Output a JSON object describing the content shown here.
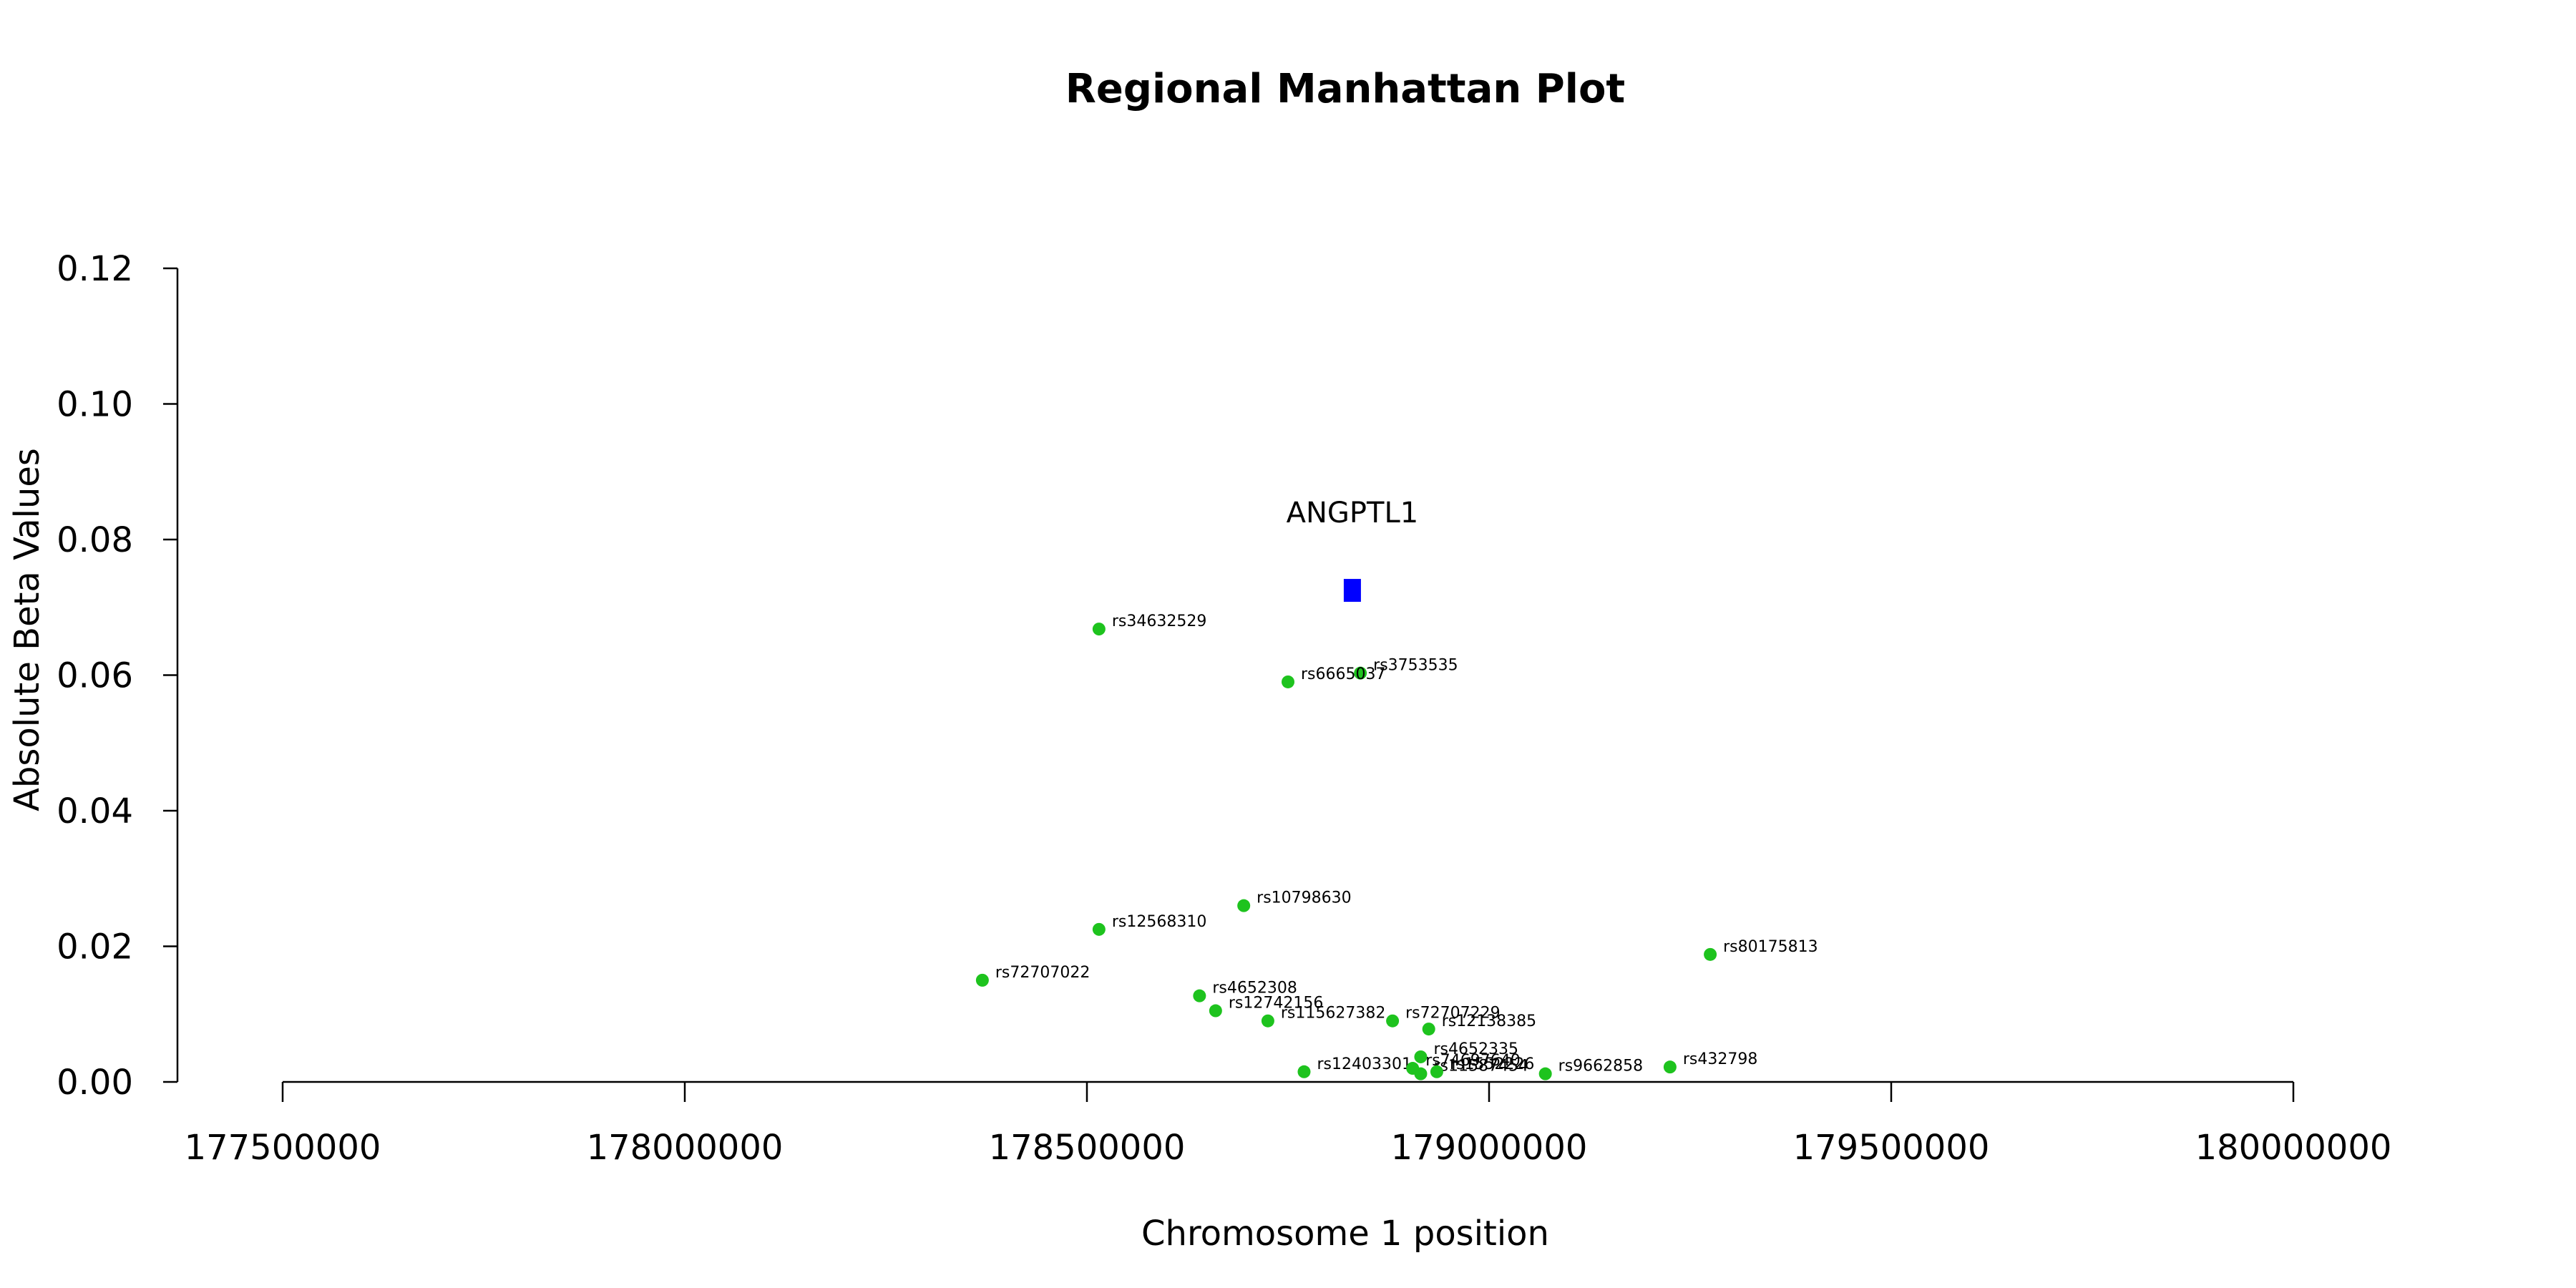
{
  "chart_data": {
    "type": "scatter",
    "title": "Regional Manhattan Plot",
    "xlabel": "Chromosome 1 position",
    "ylabel": "Absolute Beta Values",
    "xlim": [
      177500000,
      180000000
    ],
    "ylim": [
      0,
      0.12
    ],
    "x_ticks": [
      177500000,
      178000000,
      178500000,
      179000000,
      179500000,
      180000000
    ],
    "x_tick_labels": [
      "177500000",
      "178000000",
      "178500000",
      "179000000",
      "179500000",
      "180000000"
    ],
    "y_ticks": [
      0,
      0.02,
      0.04,
      0.06,
      0.08,
      0.1,
      0.12
    ],
    "y_tick_labels": [
      "0.00",
      "0.02",
      "0.04",
      "0.06",
      "0.08",
      "0.10",
      "0.12"
    ],
    "grid": false,
    "gene": {
      "name": "ANGPTL1",
      "x": 178830000,
      "y": 0.0725,
      "color": "#0000ff"
    },
    "snp_color": "#1ec31e",
    "snps": [
      {
        "label": "rs34632529",
        "x": 178515000,
        "y": 0.0668
      },
      {
        "label": "rs3753535",
        "x": 178840000,
        "y": 0.0603
      },
      {
        "label": "rs6665037",
        "x": 178750000,
        "y": 0.059
      },
      {
        "label": "rs10798630",
        "x": 178695000,
        "y": 0.026
      },
      {
        "label": "rs12568310",
        "x": 178515000,
        "y": 0.0225
      },
      {
        "label": "rs80175813",
        "x": 179275000,
        "y": 0.0188
      },
      {
        "label": "rs72707022",
        "x": 178370000,
        "y": 0.015
      },
      {
        "label": "rs4652308",
        "x": 178640000,
        "y": 0.0127
      },
      {
        "label": "rs12742156",
        "x": 178660000,
        "y": 0.0105
      },
      {
        "label": "rs115627382",
        "x": 178725000,
        "y": 0.009
      },
      {
        "label": "rs72707229",
        "x": 178880000,
        "y": 0.009
      },
      {
        "label": "rs12138385",
        "x": 178925000,
        "y": 0.0078
      },
      {
        "label": "rs4652335",
        "x": 178915000,
        "y": 0.0037
      },
      {
        "label": "rs432798",
        "x": 179225000,
        "y": 0.0022
      },
      {
        "label": "rs12403301",
        "x": 178770000,
        "y": 0.0015
      },
      {
        "label": "rs74697640",
        "x": 178905000,
        "y": 0.002
      },
      {
        "label": "rs11587454",
        "x": 178915000,
        "y": 0.0012
      },
      {
        "label": "rs1552226",
        "x": 178935000,
        "y": 0.0015
      },
      {
        "label": "rs9662858",
        "x": 179070000,
        "y": 0.0012
      }
    ]
  }
}
